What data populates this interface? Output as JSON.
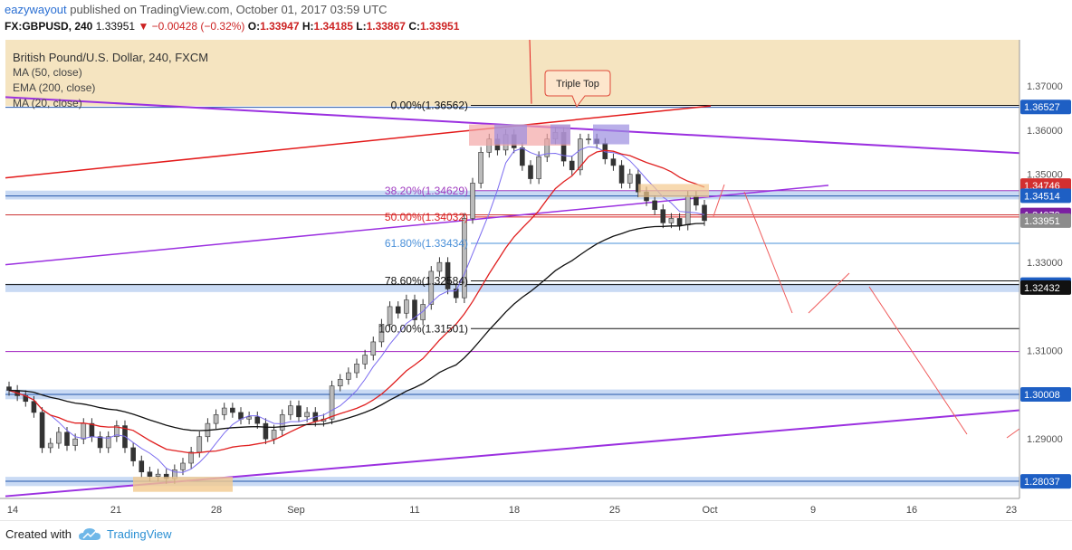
{
  "header": {
    "author": "eazywayout",
    "published": "published on TradingView.com, October 01, 2017 03:59 UTC",
    "symbol": "FX:GBPUSD, 240",
    "last": "1.33951",
    "change_arrow": "▼",
    "change": "−0.00428 (−0.32%)",
    "o_label": "O:",
    "o": "1.33947",
    "h_label": "H:",
    "h": "1.34185",
    "l_label": "L:",
    "l": "1.33867",
    "c_label": "C:",
    "c": "1.33951"
  },
  "legend": {
    "title": "British Pound/U.S. Dollar, 240, FXCM",
    "lines": [
      "MA (50, close)",
      "EMA (200, close)",
      "MA (20, close)"
    ]
  },
  "footer": {
    "created_with": "Created with",
    "brand": "TradingView",
    "icon": "tradingview-cloud-icon"
  },
  "colors": {
    "up": "#888888",
    "down": "#555555",
    "ma50": "#e02020",
    "ema200": "#111111",
    "ma20": "#7b6cf0",
    "fib": "#4a90d9",
    "trend": "#9b30e0",
    "resist": "#e31a1a",
    "band": "#b7cdf0",
    "zone": "#f3dfb5"
  },
  "chart_data": {
    "type": "candlestick",
    "symbol": "British Pound/U.S. Dollar, 240, FXCM",
    "y_range": [
      1.2765,
      1.3805
    ],
    "x_ticks": [
      "14",
      "21",
      "28",
      "Sep",
      "11",
      "18",
      "25",
      "Oct",
      "9",
      "16",
      "23"
    ],
    "y_ticks": [
      "1.37000",
      "1.36000",
      "1.35000",
      "1.33000",
      "1.31000",
      "1.29000"
    ],
    "price_labels": [
      {
        "text": "1.36527",
        "value": 1.36527,
        "style": "blue"
      },
      {
        "text": "1.34746",
        "value": 1.34746,
        "style": "red"
      },
      {
        "text": "1.34514",
        "value": 1.34514,
        "style": "blue"
      },
      {
        "text": "1.34079",
        "value": 1.34079,
        "style": "purple"
      },
      {
        "text": "1.33951",
        "value": 1.33951,
        "style": "gray"
      },
      {
        "text": "1.32499",
        "value": 1.32499,
        "style": "blue"
      },
      {
        "text": "1.32432",
        "value": 1.32432,
        "style": "black"
      },
      {
        "text": "1.30008",
        "value": 1.30008,
        "style": "blue"
      },
      {
        "text": "1.28037",
        "value": 1.28037,
        "style": "blue"
      }
    ],
    "fib_levels": [
      {
        "label": "0.00%(1.36562)",
        "value": 1.36562
      },
      {
        "label": "38.20%(1.34629)",
        "value": 1.34629
      },
      {
        "label": "50.00%(1.34032)",
        "value": 1.34032
      },
      {
        "label": "61.80%(1.33434)",
        "value": 1.33434
      },
      {
        "label": "78.60%(1.32584)",
        "value": 1.32584
      },
      {
        "label": "100.00%(1.31501)",
        "value": 1.31501
      }
    ],
    "annotations": [
      {
        "text": "Triple Top"
      }
    ],
    "ohlc_close_path": [
      1.301,
      1.2998,
      1.2985,
      1.296,
      1.288,
      1.289,
      1.2915,
      1.2885,
      1.29,
      1.2935,
      1.2905,
      1.288,
      1.2905,
      1.293,
      1.288,
      1.285,
      1.2825,
      1.2815,
      1.282,
      1.281,
      1.283,
      1.2845,
      1.287,
      1.2905,
      1.2935,
      1.2955,
      1.297,
      1.296,
      1.2945,
      1.295,
      1.2935,
      1.29,
      1.292,
      1.2955,
      1.2975,
      1.295,
      1.296,
      1.294,
      1.2945,
      1.302,
      1.3035,
      1.305,
      1.307,
      1.309,
      1.312,
      1.316,
      1.32,
      1.3185,
      1.3215,
      1.317,
      1.3205,
      1.328,
      1.33,
      1.324,
      1.322,
      1.34,
      1.348,
      1.355,
      1.358,
      1.3555,
      1.359,
      1.356,
      1.352,
      1.349,
      1.354,
      1.358,
      1.3595,
      1.353,
      1.351,
      1.358,
      1.358,
      1.357,
      1.3535,
      1.352,
      1.348,
      1.35,
      1.346,
      1.344,
      1.342,
      1.339,
      1.34,
      1.3385,
      1.345,
      1.343,
      1.3395
    ]
  }
}
